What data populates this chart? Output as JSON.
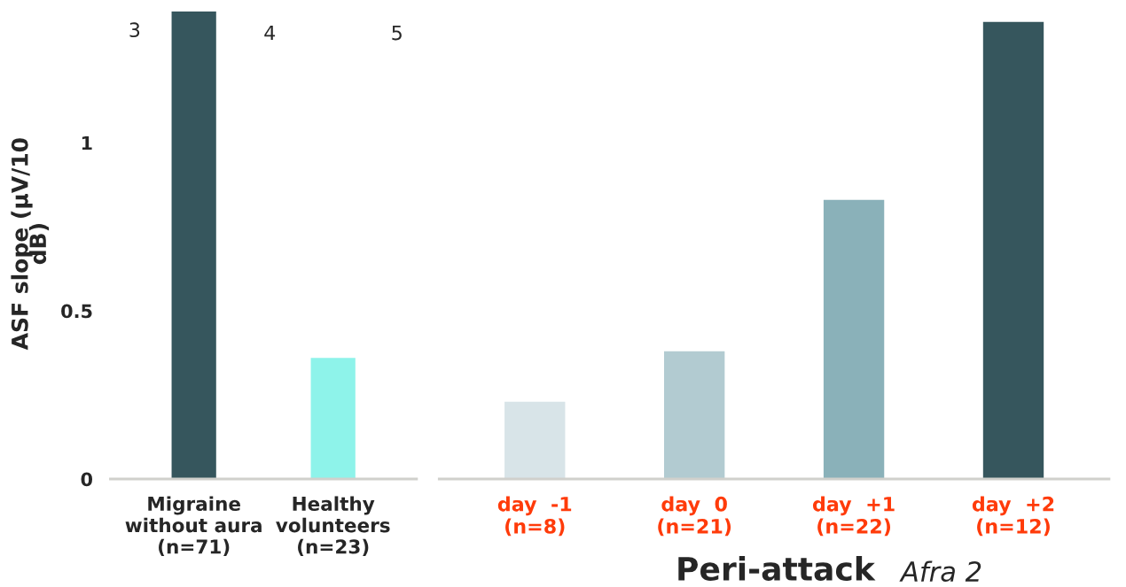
{
  "chart_data": [
    {
      "type": "bar",
      "ylabel": "ASF slope (μV/10\ndB)",
      "categories": [
        "Migraine\nwithout aura\n(n=71)",
        "Healthy\nvolunteers\n(n=23)"
      ],
      "values": [
        1.39,
        0.36
      ],
      "colors": [
        "#36565d",
        "#8ef3ea"
      ],
      "ylim": [
        0,
        1.4
      ],
      "yticks": [
        0,
        0.5,
        1
      ],
      "grid": false,
      "legend": false,
      "annotations": [
        "3",
        "4",
        "5"
      ]
    },
    {
      "type": "bar",
      "categories": [
        "day  -1\n(n=8)",
        "day  0\n(n=21)",
        "day  +1\n(n=22)",
        "day  +2\n(n=12)"
      ],
      "values": [
        0.23,
        0.38,
        0.83,
        1.36
      ],
      "colors": [
        "#d8e4e8",
        "#b2cbd1",
        "#8ab1b9",
        "#36565d"
      ],
      "ylim": [
        0,
        1.36
      ],
      "yticks": [
        0,
        0.5,
        1
      ],
      "tick_labels": "x",
      "grid": false,
      "legend": false,
      "annotations": [
        "Peri-attack",
        "Afra 2"
      ]
    }
  ]
}
